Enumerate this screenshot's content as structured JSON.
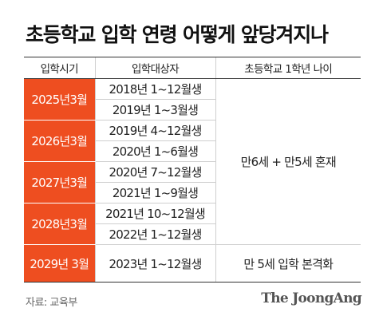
{
  "title": "초등학교 입학 연령 어떻게 앞당겨지나",
  "columns": {
    "year": "입학시기",
    "target": "입학대상자",
    "age": "초등학교 1학년 나이"
  },
  "rows": [
    {
      "year": "2025년3월",
      "targets": [
        "2018년 1~12월생",
        "2019년 1~3월생"
      ]
    },
    {
      "year": "2026년3월",
      "targets": [
        "2019년 4~12월생",
        "2020년 1~6월생"
      ]
    },
    {
      "year": "2027년3월",
      "targets": [
        "2020년 7~12월생",
        "2021년 1~9월생"
      ]
    },
    {
      "year": "2028년3월",
      "targets": [
        "2021년 10~12월생",
        "2022년 1~12월생"
      ]
    },
    {
      "year": "2029년 3월",
      "targets": [
        "2023년 1~12월생"
      ]
    }
  ],
  "ages": [
    "만6세 + 만5세 혼재",
    "만 5세 입학 본격화"
  ],
  "source": "자료: 교육부",
  "logo": "The JoongAng",
  "colors": {
    "accent": "#ee4e20",
    "rule": "#333333",
    "divider": "#cfcfcf"
  }
}
